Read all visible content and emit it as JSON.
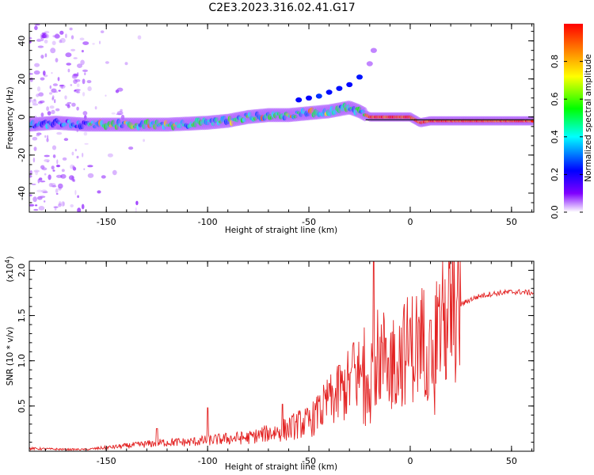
{
  "title": "C2E3.2023.316.02.41.G17",
  "chart_data": [
    {
      "type": "heatmap",
      "xlabel": "Height of straight line (km)",
      "ylabel": "Frequency (Hz)",
      "xlim": [
        -188,
        61
      ],
      "ylim": [
        -50,
        49
      ],
      "xticks": [
        -150,
        -100,
        -50,
        0,
        50
      ],
      "yticks": [
        -40,
        -20,
        0,
        20,
        40
      ],
      "colorbar": {
        "label": "Normalized spectral amplitude",
        "range": [
          0.0,
          1.0
        ],
        "ticks": [
          0.0,
          0.2,
          0.4,
          0.6,
          0.8
        ],
        "colormap": [
          "#ffffff",
          "#7f00ff",
          "#0000ff",
          "#00ffff",
          "#00ff00",
          "#ffff00",
          "#ff8000",
          "#ff0000"
        ]
      },
      "ridge": {
        "x": [
          -188,
          -175,
          -160,
          -140,
          -120,
          -100,
          -90,
          -80,
          -70,
          -60,
          -50,
          -40,
          -35,
          -30,
          -25,
          -20,
          -15,
          -10,
          -5,
          0,
          5,
          10,
          20,
          30,
          40,
          50,
          61
        ],
        "freq": [
          -4,
          -3,
          -4,
          -4,
          -4,
          -3,
          -2,
          0,
          1,
          1,
          2,
          3,
          4,
          5,
          3,
          0,
          0,
          0,
          0,
          0,
          -3,
          -2,
          -2,
          -2,
          -2,
          -2,
          -2
        ]
      },
      "secondary_branch": {
        "x": [
          -55,
          -50,
          -45,
          -40,
          -35,
          -30,
          -25,
          -20,
          -18
        ],
        "freq": [
          9,
          10,
          11,
          13,
          15,
          17,
          21,
          28,
          35
        ]
      }
    },
    {
      "type": "line",
      "xlabel": "Height of straight line (km)",
      "ylabel": "SNR (10 * v/v)",
      "scale_label": "(x10",
      "scale_exponent": "4",
      "scale_close": ")",
      "xlim": [
        -188,
        61
      ],
      "ylim": [
        0.0,
        2.1
      ],
      "xticks": [
        -150,
        -100,
        -50,
        0,
        50
      ],
      "yticks": [
        0.5,
        1.0,
        1.5,
        2.0
      ],
      "line_color": "#e32222",
      "envelope": {
        "x": [
          -188,
          -170,
          -160,
          -150,
          -140,
          -130,
          -120,
          -110,
          -100,
          -90,
          -80,
          -70,
          -65,
          -60,
          -55,
          -50,
          -45,
          -40,
          -35,
          -30,
          -25,
          -20,
          -15,
          -10,
          -5,
          0,
          5,
          10,
          15,
          20,
          25,
          30,
          35,
          40,
          45,
          50,
          55,
          61
        ],
        "y": [
          0.03,
          0.02,
          0.02,
          0.04,
          0.06,
          0.08,
          0.1,
          0.1,
          0.12,
          0.14,
          0.15,
          0.2,
          0.22,
          0.25,
          0.3,
          0.32,
          0.42,
          0.55,
          0.62,
          0.75,
          0.85,
          0.95,
          1.05,
          1.0,
          1.05,
          1.15,
          1.2,
          1.25,
          1.4,
          1.5,
          1.62,
          1.68,
          1.72,
          1.74,
          1.75,
          1.76,
          1.76,
          1.75
        ]
      },
      "spikes": [
        {
          "x": -100,
          "y": 0.48
        },
        {
          "x": -125,
          "y": 0.25
        },
        {
          "x": -63,
          "y": 0.52
        },
        {
          "x": -45,
          "y": 0.55
        },
        {
          "x": -40,
          "y": 0.75
        },
        {
          "x": -35,
          "y": 0.95
        },
        {
          "x": -28,
          "y": 1.2
        },
        {
          "x": -18,
          "y": 2.1
        },
        {
          "x": -12,
          "y": 1.25
        },
        {
          "x": 10,
          "y": 1.45
        },
        {
          "x": 14,
          "y": 1.6
        }
      ]
    }
  ]
}
